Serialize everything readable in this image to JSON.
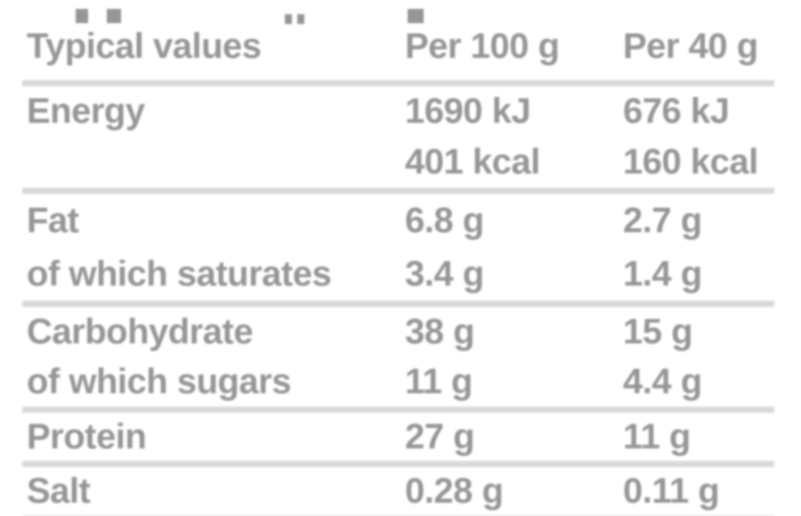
{
  "colors": {
    "text": "#969696",
    "divider": "#d9d9d9",
    "background": "#ffffff"
  },
  "table": {
    "columns": [
      "Typical values",
      "Per 100 g",
      "Per 40 g"
    ],
    "rows": [
      {
        "label": "Energy",
        "per_100g": [
          "1690 kJ",
          "401 kcal"
        ],
        "per_40g": [
          "676 kJ",
          "160 kcal"
        ]
      },
      {
        "label": "Fat",
        "per_100g": [
          "6.8 g"
        ],
        "per_40g": [
          "2.7 g"
        ]
      },
      {
        "label": "of which saturates",
        "per_100g": [
          "3.4 g"
        ],
        "per_40g": [
          "1.4 g"
        ]
      },
      {
        "label": "Carbohydrate",
        "per_100g": [
          "38 g"
        ],
        "per_40g": [
          "15 g"
        ]
      },
      {
        "label": "of which sugars",
        "per_100g": [
          "11 g"
        ],
        "per_40g": [
          "4.4 g"
        ]
      },
      {
        "label": "Protein",
        "per_100g": [
          "27 g"
        ],
        "per_40g": [
          "11 g"
        ]
      },
      {
        "label": "Salt",
        "per_100g": [
          "0.28 g"
        ],
        "per_40g": [
          "0.11 g"
        ]
      }
    ]
  }
}
